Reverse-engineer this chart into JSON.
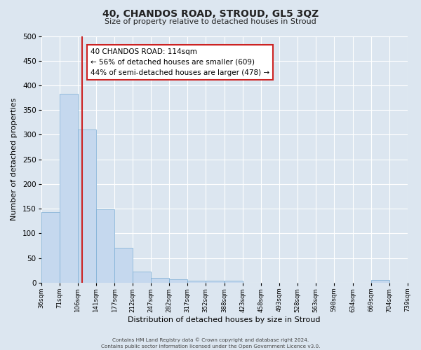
{
  "title": "40, CHANDOS ROAD, STROUD, GL5 3QZ",
  "subtitle": "Size of property relative to detached houses in Stroud",
  "xlabel": "Distribution of detached houses by size in Stroud",
  "ylabel": "Number of detached properties",
  "bar_color": "#c5d8ee",
  "bar_edge_color": "#7aadd4",
  "bg_color": "#dce6f0",
  "grid_color": "#ffffff",
  "vline_x": 114,
  "vline_color": "#cc2222",
  "bin_edges": [
    36,
    71,
    106,
    141,
    177,
    212,
    247,
    282,
    317,
    352,
    388,
    423,
    458,
    493,
    528,
    563,
    598,
    634,
    669,
    704,
    739
  ],
  "bar_heights": [
    143,
    383,
    310,
    148,
    70,
    22,
    9,
    7,
    4,
    4,
    4,
    0,
    0,
    0,
    0,
    0,
    0,
    0,
    5,
    0
  ],
  "tick_labels": [
    "36sqm",
    "71sqm",
    "106sqm",
    "141sqm",
    "177sqm",
    "212sqm",
    "247sqm",
    "282sqm",
    "317sqm",
    "352sqm",
    "388sqm",
    "423sqm",
    "458sqm",
    "493sqm",
    "528sqm",
    "563sqm",
    "598sqm",
    "634sqm",
    "669sqm",
    "704sqm",
    "739sqm"
  ],
  "ylim": [
    0,
    500
  ],
  "yticks": [
    0,
    50,
    100,
    150,
    200,
    250,
    300,
    350,
    400,
    450,
    500
  ],
  "annotation_title": "40 CHANDOS ROAD: 114sqm",
  "annotation_line1": "← 56% of detached houses are smaller (609)",
  "annotation_line2": "44% of semi-detached houses are larger (478) →",
  "footnote1": "Contains HM Land Registry data © Crown copyright and database right 2024.",
  "footnote2": "Contains public sector information licensed under the Open Government Licence v3.0."
}
